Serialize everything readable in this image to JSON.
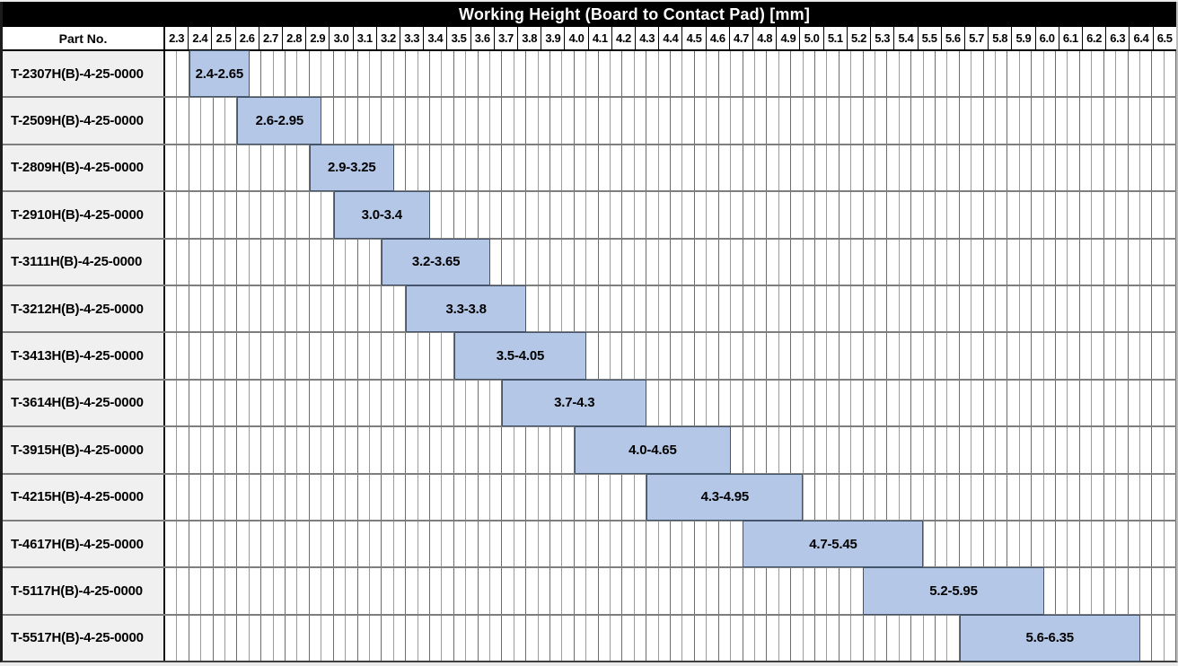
{
  "title": "Working Height (Board to Contact Pad) [mm]",
  "part_header": "Part No.",
  "axis": {
    "min": 2.3,
    "max": 6.5,
    "step": 0.1,
    "ticks": [
      "2.3",
      "2.4",
      "2.5",
      "2.6",
      "2.7",
      "2.8",
      "2.9",
      "3.0",
      "3.1",
      "3.2",
      "3.3",
      "3.4",
      "3.5",
      "3.6",
      "3.7",
      "3.8",
      "3.9",
      "4.0",
      "4.1",
      "4.2",
      "4.3",
      "4.4",
      "4.5",
      "4.6",
      "4.7",
      "4.8",
      "4.9",
      "5.0",
      "5.1",
      "5.2",
      "5.3",
      "5.4",
      "5.5",
      "5.6",
      "5.7",
      "5.8",
      "5.9",
      "6.0",
      "6.1",
      "6.2",
      "6.3",
      "6.4",
      "6.5"
    ]
  },
  "rows": [
    {
      "part": "T-2307H(B)-4-25-0000",
      "label": "2.4-2.65",
      "start": 2.4,
      "end": 2.65
    },
    {
      "part": "T-2509H(B)-4-25-0000",
      "label": "2.6-2.95",
      "start": 2.6,
      "end": 2.95
    },
    {
      "part": "T-2809H(B)-4-25-0000",
      "label": "2.9-3.25",
      "start": 2.9,
      "end": 3.25
    },
    {
      "part": "T-2910H(B)-4-25-0000",
      "label": "3.0-3.4",
      "start": 3.0,
      "end": 3.4
    },
    {
      "part": "T-3111H(B)-4-25-0000",
      "label": "3.2-3.65",
      "start": 3.2,
      "end": 3.65
    },
    {
      "part": "T-3212H(B)-4-25-0000",
      "label": "3.3-3.8",
      "start": 3.3,
      "end": 3.8
    },
    {
      "part": "T-3413H(B)-4-25-0000",
      "label": "3.5-4.05",
      "start": 3.5,
      "end": 4.05
    },
    {
      "part": "T-3614H(B)-4-25-0000",
      "label": "3.7-4.3",
      "start": 3.7,
      "end": 4.3
    },
    {
      "part": "T-3915H(B)-4-25-0000",
      "label": "4.0-4.65",
      "start": 4.0,
      "end": 4.65
    },
    {
      "part": "T-4215H(B)-4-25-0000",
      "label": "4.3-4.95",
      "start": 4.3,
      "end": 4.95
    },
    {
      "part": "T-4617H(B)-4-25-0000",
      "label": "4.7-5.45",
      "start": 4.7,
      "end": 5.45
    },
    {
      "part": "T-5117H(B)-4-25-0000",
      "label": "5.2-5.95",
      "start": 5.2,
      "end": 5.95
    },
    {
      "part": "T-5517H(B)-4-25-0000",
      "label": "5.6-6.35",
      "start": 5.6,
      "end": 6.35
    }
  ],
  "colors": {
    "title_bg": "#000000",
    "title_fg": "#ffffff",
    "bar_fill": "#b4c7e7",
    "bar_border": "#44546a",
    "part_column_bg": "#f0f0f0",
    "grid_half_line": "#9b9b9b",
    "grid_full_line": "#6d6d6d",
    "row_separator": "#7e7e7e"
  },
  "chart_data": {
    "type": "bar",
    "subtype": "horizontal-range-gantt",
    "title": "Working Height (Board to Contact Pad) [mm]",
    "categories": [
      "T-2307H(B)-4-25-0000",
      "T-2509H(B)-4-25-0000",
      "T-2809H(B)-4-25-0000",
      "T-2910H(B)-4-25-0000",
      "T-3111H(B)-4-25-0000",
      "T-3212H(B)-4-25-0000",
      "T-3413H(B)-4-25-0000",
      "T-3614H(B)-4-25-0000",
      "T-3915H(B)-4-25-0000",
      "T-4215H(B)-4-25-0000",
      "T-4617H(B)-4-25-0000",
      "T-5117H(B)-4-25-0000",
      "T-5517H(B)-4-25-0000"
    ],
    "ranges": [
      [
        2.4,
        2.65
      ],
      [
        2.6,
        2.95
      ],
      [
        2.9,
        3.25
      ],
      [
        3.0,
        3.4
      ],
      [
        3.2,
        3.65
      ],
      [
        3.3,
        3.8
      ],
      [
        3.5,
        4.05
      ],
      [
        3.7,
        4.3
      ],
      [
        4.0,
        4.65
      ],
      [
        4.3,
        4.95
      ],
      [
        4.7,
        5.45
      ],
      [
        5.2,
        5.95
      ],
      [
        5.6,
        6.35
      ]
    ],
    "range_labels": [
      "2.4-2.65",
      "2.6-2.95",
      "2.9-3.25",
      "3.0-3.4",
      "3.2-3.65",
      "3.3-3.8",
      "3.5-4.05",
      "3.7-4.3",
      "4.0-4.65",
      "4.3-4.95",
      "4.7-5.45",
      "5.2-5.95",
      "5.6-6.35"
    ],
    "xlabel": "Working Height (Board to Contact Pad) [mm]",
    "ylabel": "Part No.",
    "xlim": [
      2.3,
      6.5
    ],
    "xtick_step": 0.1,
    "minor_grid_step": 0.05,
    "grid": true,
    "legend": false
  }
}
